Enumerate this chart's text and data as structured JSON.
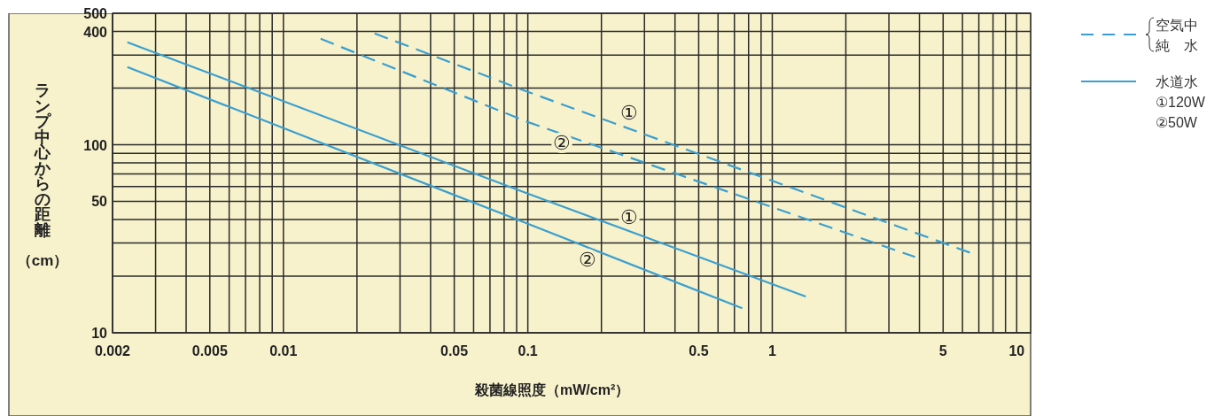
{
  "chart_data": {
    "type": "line",
    "xlabel": "殺菌線照度（mW/cm²）",
    "ylabel": "ランプ中心からの距離（cm）",
    "log": "xy",
    "grid": true,
    "legend": "right",
    "marker": "none",
    "xlim": [
      0.002,
      11.4
    ],
    "ylim": [
      10,
      500
    ],
    "xticks": [
      {
        "value": 0.002,
        "label": "0.002"
      },
      {
        "value": 0.003,
        "label": null
      },
      {
        "value": 0.004,
        "label": null
      },
      {
        "value": 0.005,
        "label": "0.005"
      },
      {
        "value": 0.006,
        "label": null
      },
      {
        "value": 0.007,
        "label": null
      },
      {
        "value": 0.008,
        "label": null
      },
      {
        "value": 0.009,
        "label": null
      },
      {
        "value": 0.01,
        "label": "0.01"
      },
      {
        "value": 0.02,
        "label": null
      },
      {
        "value": 0.03,
        "label": null
      },
      {
        "value": 0.04,
        "label": null
      },
      {
        "value": 0.05,
        "label": "0.05"
      },
      {
        "value": 0.06,
        "label": null
      },
      {
        "value": 0.07,
        "label": null
      },
      {
        "value": 0.08,
        "label": null
      },
      {
        "value": 0.09,
        "label": null
      },
      {
        "value": 0.1,
        "label": "0.1"
      },
      {
        "value": 0.2,
        "label": null
      },
      {
        "value": 0.3,
        "label": null
      },
      {
        "value": 0.4,
        "label": null
      },
      {
        "value": 0.5,
        "label": "0.5"
      },
      {
        "value": 0.6,
        "label": null
      },
      {
        "value": 0.7,
        "label": null
      },
      {
        "value": 0.8,
        "label": null
      },
      {
        "value": 0.9,
        "label": null
      },
      {
        "value": 1,
        "label": "1"
      },
      {
        "value": 2,
        "label": null
      },
      {
        "value": 3,
        "label": null
      },
      {
        "value": 4,
        "label": null
      },
      {
        "value": 5,
        "label": "5"
      },
      {
        "value": 6,
        "label": null
      },
      {
        "value": 7,
        "label": null
      },
      {
        "value": 8,
        "label": null
      },
      {
        "value": 9,
        "label": null
      },
      {
        "value": 10,
        "label": "10"
      }
    ],
    "yticks": [
      {
        "value": 10,
        "label": "10"
      },
      {
        "value": 20,
        "label": null
      },
      {
        "value": 30,
        "label": null
      },
      {
        "value": 40,
        "label": null
      },
      {
        "value": 50,
        "label": "50"
      },
      {
        "value": 60,
        "label": null
      },
      {
        "value": 70,
        "label": null
      },
      {
        "value": 80,
        "label": null
      },
      {
        "value": 90,
        "label": null
      },
      {
        "value": 100,
        "label": "100"
      },
      {
        "value": 200,
        "label": null
      },
      {
        "value": 300,
        "label": null
      },
      {
        "value": 400,
        "label": "400"
      },
      {
        "value": 500,
        "label": "500"
      }
    ],
    "series": [
      {
        "name": "空気中純　水",
        "color": "#3a9fd0",
        "line_style": "dashed",
        "x": [
          0.0236,
          0.1,
          6.43
        ],
        "values": [
          391,
          191,
          26.7
        ]
      },
      {
        "color": "#3a9fd0",
        "line_style": "dashed",
        "x": [
          0.0142,
          0.1,
          3.84
        ],
        "values": [
          366,
          132,
          25.3
        ]
      },
      {
        "name": "水道水",
        "color": "#3a9fd0",
        "line_style": "solid",
        "x": [
          0.0023,
          0.1,
          1.37
        ],
        "values": [
          351,
          55,
          15.6
        ]
      },
      {
        "color": "#3a9fd0",
        "line_style": "solid",
        "x": [
          0.0023,
          0.1,
          0.754
        ],
        "values": [
          259,
          38,
          13.5
        ]
      }
    ],
    "annotations": [
      "①",
      "②",
      "①",
      "②",
      "①120W",
      "②50W"
    ]
  }
}
